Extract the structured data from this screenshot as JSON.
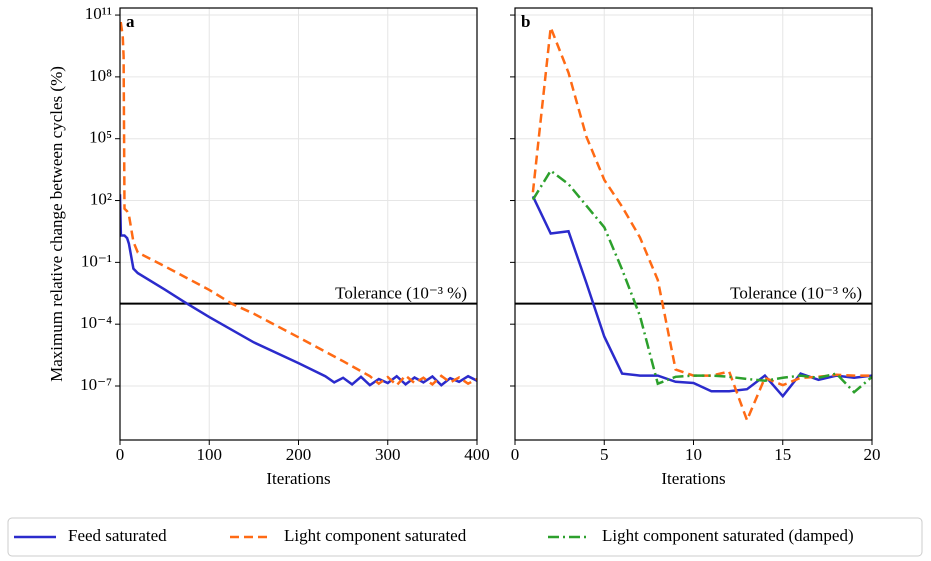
{
  "chart_data": [
    {
      "type": "line",
      "panel_label": "a",
      "yscale": "log",
      "grid": true,
      "ylabel": "Maximum relative change between cycles (%)",
      "xlabel": "Iterations",
      "xlim": [
        0,
        400
      ],
      "xticks": [
        0,
        100,
        200,
        300,
        400
      ],
      "ylim": [
        2.4e-10,
        220000000000.0
      ],
      "yticks": [
        {
          "value": 1e-07,
          "label": "10⁻⁷"
        },
        {
          "value": 0.0001,
          "label": "10⁻⁴"
        },
        {
          "value": 0.1,
          "label": "10⁻¹"
        },
        {
          "value": 100,
          "label": "10²"
        },
        {
          "value": 100000,
          "label": "10⁵"
        },
        {
          "value": 100000000,
          "label": "10⁸"
        },
        {
          "value": 100000000000,
          "label": "10¹¹"
        }
      ],
      "hline": {
        "value": 0.001,
        "label": "Tolerance (10⁻³ %)"
      },
      "series": [
        {
          "name": "Feed saturated",
          "color": "#2b2bcc",
          "linestyle": "solid",
          "x": [
            0,
            1,
            2,
            5,
            8,
            10,
            15,
            20,
            50,
            72,
            100,
            150,
            200,
            230,
            240,
            250,
            260,
            270,
            280,
            290,
            300,
            310,
            320,
            330,
            340,
            350,
            360,
            370,
            380,
            390,
            400
          ],
          "values": [
            200,
            2,
            2,
            2,
            1.5,
            0.8,
            0.05,
            0.03,
            0.0049,
            0.0012,
            0.00022,
            1.3e-05,
            1.3e-06,
            3e-07,
            1.5e-07,
            2.5e-07,
            1.2e-07,
            2.8e-07,
            1.1e-07,
            2.2e-07,
            1.4e-07,
            3e-07,
            1.2e-07,
            2.6e-07,
            1.5e-07,
            2.9e-07,
            1.1e-07,
            2.4e-07,
            1.6e-07,
            3e-07,
            1.8e-07
          ]
        },
        {
          "name": "Light component saturated",
          "color": "#ff6a14",
          "linestyle": "dashed",
          "x": [
            0,
            1,
            3,
            4,
            5,
            8,
            10,
            15,
            20,
            50,
            100,
            125,
            150,
            200,
            250,
            280,
            290,
            300,
            310,
            320,
            330,
            340,
            350,
            360,
            370,
            380,
            390,
            400
          ],
          "values": [
            40000000000,
            40000000000,
            10000000000,
            1000000000,
            40,
            30,
            20,
            1,
            0.3,
            0.065,
            0.0046,
            0.001,
            0.00032,
            2.3e-05,
            1.6e-06,
            3e-07,
            1.3e-07,
            2.7e-07,
            1.1e-07,
            3.2e-07,
            1.4e-07,
            2.5e-07,
            1.2e-07,
            3.1e-07,
            1.5e-07,
            2.6e-07,
            1.3e-07,
            2.2e-07
          ]
        }
      ]
    },
    {
      "type": "line",
      "panel_label": "b",
      "yscale": "log",
      "grid": true,
      "legend": "below",
      "xlabel": "Iterations",
      "xlim": [
        0,
        20
      ],
      "xticks": [
        0,
        5,
        10,
        15,
        20
      ],
      "ylim": [
        2.4e-10,
        220000000000.0
      ],
      "yticks": [
        1e-07,
        0.0001,
        0.1,
        100,
        100000,
        100000000,
        100000000000
      ],
      "hline": {
        "value": 0.001,
        "label": "Tolerance (10⁻³ %)"
      },
      "x": [
        1,
        2,
        3,
        4,
        5,
        6,
        7,
        8,
        9,
        10,
        11,
        12,
        13,
        14,
        15,
        16,
        17,
        18,
        19,
        20
      ],
      "series": [
        {
          "name": "Feed saturated",
          "color": "#2b2bcc",
          "linestyle": "solid",
          "values": [
            160,
            2.5,
            3.2,
            0.01,
            2.5e-05,
            4e-07,
            3.2e-07,
            3.2e-07,
            1.6e-07,
            1.4e-07,
            5.6e-08,
            5.6e-08,
            7e-08,
            3.2e-07,
            3.2e-08,
            4e-07,
            2e-07,
            3.2e-07,
            2.5e-07,
            3.2e-07
          ]
        },
        {
          "name": "Light component saturated",
          "color": "#ff6a14",
          "linestyle": "dashed",
          "values": [
            250,
            25000000000,
            160000000,
            125000,
            1000,
            50,
            1.6,
            0.014,
            6.3e-07,
            3.2e-07,
            3.2e-07,
            5e-07,
            2.2e-09,
            2.5e-07,
            1.1e-07,
            2.5e-07,
            2.8e-07,
            3.5e-07,
            3.2e-07,
            3.2e-07
          ]
        },
        {
          "name": "Light component saturated (damped)",
          "color": "#2ca02c",
          "linestyle": "dashdot",
          "values": [
            110,
            2800,
            630,
            56,
            5,
            0.045,
            0.00025,
            1.3e-07,
            2.8e-07,
            3.2e-07,
            3.2e-07,
            2.8e-07,
            2.2e-07,
            1.8e-07,
            2.5e-07,
            3.2e-07,
            2.5e-07,
            4e-07,
            5e-08,
            2.8e-07
          ]
        }
      ]
    }
  ]
}
